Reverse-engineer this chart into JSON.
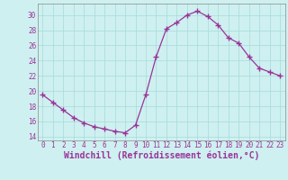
{
  "x": [
    0,
    1,
    2,
    3,
    4,
    5,
    6,
    7,
    8,
    9,
    10,
    11,
    12,
    13,
    14,
    15,
    16,
    17,
    18,
    19,
    20,
    21,
    22,
    23
  ],
  "y": [
    19.5,
    18.5,
    17.5,
    16.5,
    15.8,
    15.3,
    15.0,
    14.7,
    14.5,
    15.5,
    19.5,
    24.5,
    28.2,
    29.0,
    30.0,
    30.5,
    29.8,
    28.7,
    27.0,
    26.3,
    24.5,
    23.0,
    22.5,
    22.0
  ],
  "line_color": "#993399",
  "marker": "+",
  "marker_size": 4,
  "marker_linewidth": 1.0,
  "bg_color": "#cff0f0",
  "grid_color": "#aadddd",
  "xlabel": "Windchill (Refroidissement éolien,°C)",
  "xlabel_color": "#993399",
  "xlabel_fontsize": 7,
  "ylabel_ticks": [
    14,
    16,
    18,
    20,
    22,
    24,
    26,
    28,
    30
  ],
  "ylim": [
    13.5,
    31.5
  ],
  "xlim": [
    -0.5,
    23.5
  ],
  "tick_color": "#993399",
  "tick_fontsize": 5.5,
  "linewidth": 0.9
}
